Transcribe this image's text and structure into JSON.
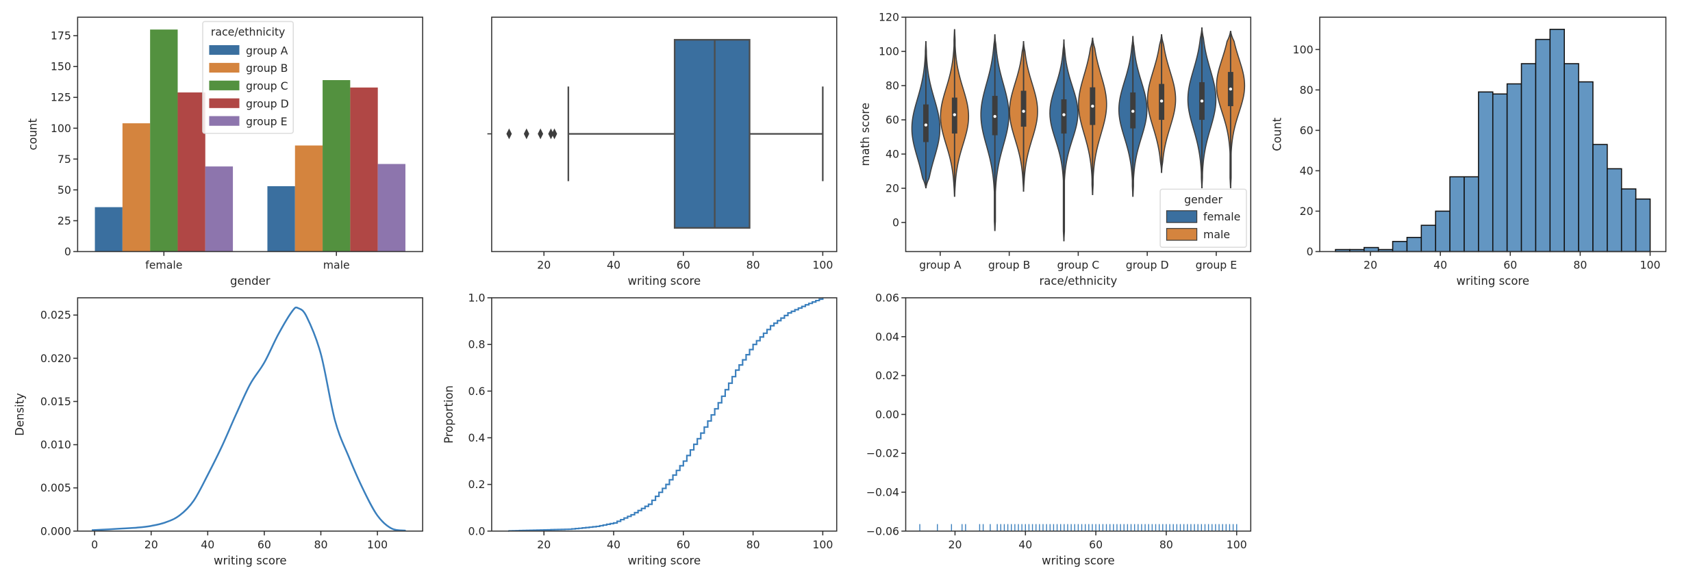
{
  "chart_data": [
    {
      "id": "countplot",
      "type": "bar",
      "xlabel": "gender",
      "ylabel": "count",
      "categories": [
        "female",
        "male"
      ],
      "ylim": [
        0,
        190
      ],
      "yticks": [
        0,
        25,
        50,
        75,
        100,
        125,
        150,
        175
      ],
      "legend": {
        "title": "race/ethnicity",
        "placement": "top-center"
      },
      "series": [
        {
          "name": "group A",
          "color": "#3a6f9f",
          "values": [
            36,
            53
          ]
        },
        {
          "name": "group B",
          "color": "#d4843e",
          "values": [
            104,
            86
          ]
        },
        {
          "name": "group C",
          "color": "#53913f",
          "values": [
            180,
            139
          ]
        },
        {
          "name": "group D",
          "color": "#b04745",
          "values": [
            129,
            133
          ]
        },
        {
          "name": "group E",
          "color": "#8d75ad",
          "values": [
            69,
            71
          ]
        }
      ]
    },
    {
      "id": "boxplot",
      "type": "box",
      "xlabel": "writing score",
      "ylabel": "",
      "xlim": [
        5,
        104
      ],
      "xticks": [
        20,
        40,
        60,
        80,
        100
      ],
      "color": "#3a6f9f",
      "stats": {
        "whisker_low": 27,
        "q1": 57.5,
        "median": 69,
        "q3": 79,
        "whisker_high": 100
      },
      "outliers": [
        10,
        15,
        19,
        22,
        23
      ]
    },
    {
      "id": "violinplot",
      "type": "violin",
      "xlabel": "race/ethnicity",
      "ylabel": "math score",
      "categories": [
        "group A",
        "group B",
        "group C",
        "group D",
        "group E"
      ],
      "ylim": [
        -17,
        120
      ],
      "yticks": [
        0,
        20,
        40,
        60,
        80,
        100,
        120
      ],
      "legend": {
        "title": "gender",
        "placement": "bottom-right"
      },
      "series": [
        {
          "name": "female",
          "color": "#3a6f9f",
          "violins": [
            {
              "min": 20,
              "q1": 47,
              "median": 57,
              "q3": 69,
              "max": 106,
              "mode": 55,
              "kde_min": 20,
              "kde_max": 106
            },
            {
              "min": -5,
              "q1": 51,
              "median": 62,
              "q3": 74,
              "max": 110,
              "mode": 63,
              "kde_min": -5,
              "kde_max": 110
            },
            {
              "min": -11,
              "q1": 52,
              "median": 63,
              "q3": 72,
              "max": 107,
              "mode": 64,
              "kde_min": -11,
              "kde_max": 107
            },
            {
              "min": 15,
              "q1": 55,
              "median": 65,
              "q3": 76,
              "max": 109,
              "mode": 66,
              "kde_min": 15,
              "kde_max": 109
            },
            {
              "min": 20,
              "q1": 60,
              "median": 71,
              "q3": 82,
              "max": 114,
              "mode": 72,
              "kde_min": 20,
              "kde_max": 114
            }
          ]
        },
        {
          "name": "male",
          "color": "#d4843e",
          "violins": [
            {
              "min": 15,
              "q1": 52,
              "median": 63,
              "q3": 73,
              "max": 113,
              "mode": 62,
              "kde_min": 15,
              "kde_max": 113
            },
            {
              "min": 18,
              "q1": 56,
              "median": 65,
              "q3": 77,
              "max": 106,
              "mode": 65,
              "kde_min": 18,
              "kde_max": 106
            },
            {
              "min": 16,
              "q1": 57,
              "median": 68,
              "q3": 79,
              "max": 108,
              "mode": 69,
              "kde_min": 16,
              "kde_max": 108
            },
            {
              "min": 29,
              "q1": 60,
              "median": 71,
              "q3": 81,
              "max": 110,
              "mode": 72,
              "kde_min": 29,
              "kde_max": 110
            },
            {
              "min": 20,
              "q1": 68,
              "median": 78,
              "q3": 88,
              "max": 112,
              "mode": 80,
              "kde_min": 20,
              "kde_max": 112
            }
          ]
        }
      ]
    },
    {
      "id": "histogram",
      "type": "bar",
      "xlabel": "writing score",
      "ylabel": "Count",
      "xlim": [
        5.5,
        104.5
      ],
      "ylim": [
        0,
        116
      ],
      "xticks": [
        20,
        40,
        60,
        80,
        100
      ],
      "yticks": [
        0,
        20,
        40,
        60,
        80,
        100
      ],
      "color": "#6396c2",
      "bin_start": 10,
      "bin_end": 100,
      "counts": [
        1,
        1,
        2,
        1,
        5,
        7,
        13,
        20,
        37,
        37,
        79,
        78,
        83,
        93,
        105,
        110,
        93,
        84,
        53,
        41,
        31,
        26
      ]
    },
    {
      "id": "kdeplot",
      "type": "line",
      "xlabel": "writing score",
      "ylabel": "Density",
      "xlim": [
        -6,
        116
      ],
      "ylim": [
        0,
        0.027
      ],
      "xticks": [
        0,
        20,
        40,
        60,
        80,
        100
      ],
      "yticks": [
        0.0,
        0.005,
        0.01,
        0.015,
        0.02,
        0.025
      ],
      "color": "#3a7fbd",
      "x": [
        -1,
        5,
        10,
        15,
        20,
        25,
        30,
        35,
        40,
        45,
        50,
        55,
        60,
        65,
        70,
        72,
        75,
        80,
        85,
        90,
        95,
        100,
        105,
        110
      ],
      "y": [
        0.0001,
        0.0002,
        0.0003,
        0.0004,
        0.0006,
        0.001,
        0.0018,
        0.0035,
        0.0065,
        0.0098,
        0.0135,
        0.017,
        0.0195,
        0.0228,
        0.0255,
        0.0258,
        0.0248,
        0.0205,
        0.0128,
        0.0085,
        0.0048,
        0.0018,
        0.0003,
        5e-05
      ]
    },
    {
      "id": "ecdfplot",
      "type": "line",
      "xlabel": "writing score",
      "ylabel": "Proportion",
      "xlim": [
        5,
        104
      ],
      "ylim": [
        0,
        1.0
      ],
      "xticks": [
        20,
        40,
        60,
        80,
        100
      ],
      "yticks": [
        0.0,
        0.2,
        0.4,
        0.6,
        0.8,
        1.0
      ],
      "color": "#3a7fbd",
      "x": [
        10,
        20,
        27,
        30,
        35,
        40,
        45,
        50,
        55,
        60,
        65,
        70,
        75,
        80,
        85,
        90,
        95,
        100
      ],
      "y": [
        0.001,
        0.005,
        0.008,
        0.012,
        0.02,
        0.035,
        0.07,
        0.115,
        0.2,
        0.3,
        0.42,
        0.55,
        0.69,
        0.8,
        0.88,
        0.935,
        0.97,
        1.0
      ]
    },
    {
      "id": "rugplot",
      "type": "scatter",
      "xlabel": "writing score",
      "ylabel": "",
      "xlim": [
        6,
        104
      ],
      "ylim": [
        -0.06,
        0.06
      ],
      "xticks": [
        20,
        40,
        60,
        80,
        100
      ],
      "yticks": [
        -0.06,
        -0.04,
        -0.02,
        0.0,
        0.02,
        0.04,
        0.06
      ],
      "ytick_labels": [
        "−0.06",
        "−0.04",
        "−0.02",
        "0.00",
        "0.02",
        "0.04",
        "0.06"
      ],
      "color": "#3a7fbd",
      "x_points": [
        10,
        15,
        19,
        22,
        23,
        27,
        28,
        30,
        32,
        33,
        34,
        35,
        36,
        37,
        38,
        39,
        40,
        41,
        42,
        43,
        44,
        45,
        46,
        47,
        48,
        49,
        50,
        51,
        52,
        53,
        54,
        55,
        56,
        57,
        58,
        59,
        60,
        61,
        62,
        63,
        64,
        65,
        66,
        67,
        68,
        69,
        70,
        71,
        72,
        73,
        74,
        75,
        76,
        77,
        78,
        79,
        80,
        81,
        82,
        83,
        84,
        85,
        86,
        87,
        88,
        89,
        90,
        91,
        92,
        93,
        94,
        95,
        96,
        97,
        98,
        99,
        100
      ]
    }
  ]
}
